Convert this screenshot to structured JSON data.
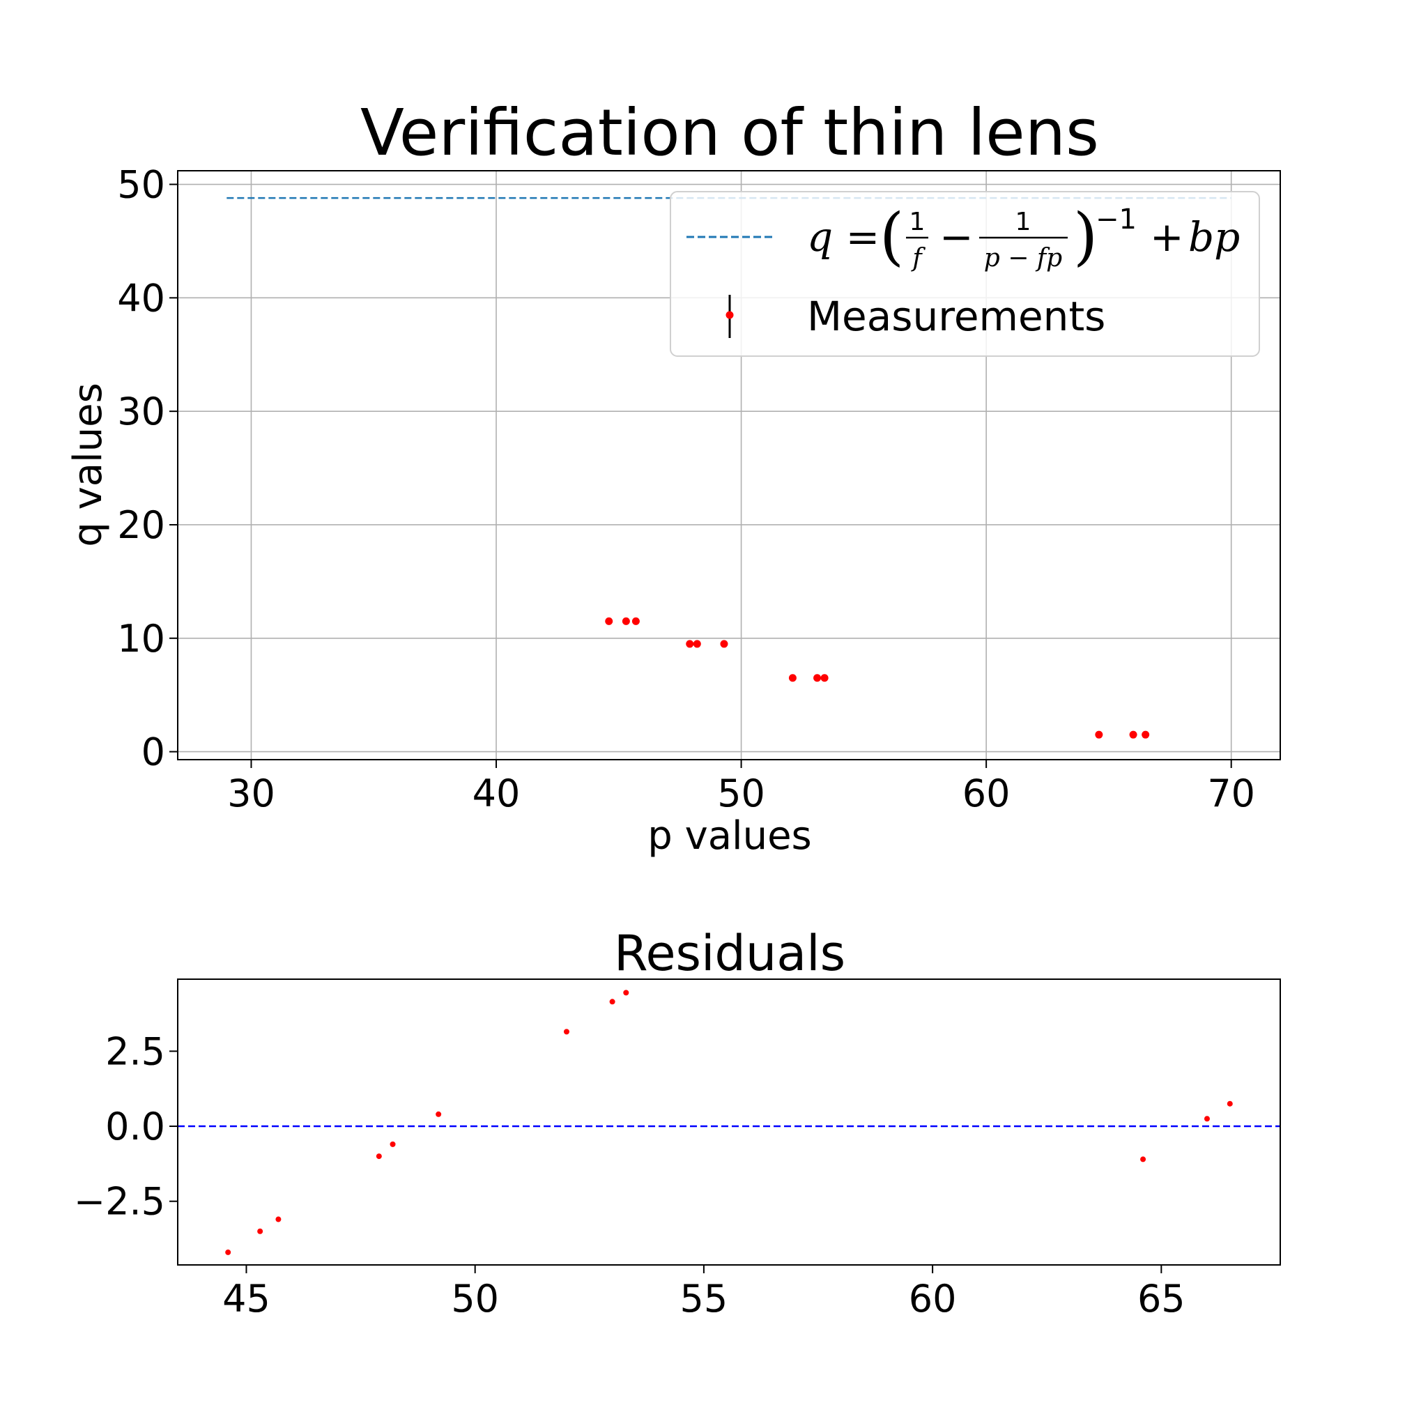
{
  "chart_data": [
    {
      "type": "scatter",
      "title": "Verification of thin lens",
      "xlabel": "p values",
      "ylabel": "q values",
      "xlim": [
        27,
        72
      ],
      "ylim": [
        -0.7,
        51.2
      ],
      "xticks": [
        "30",
        "40",
        "50",
        "60",
        "70"
      ],
      "yticks": [
        "0",
        "10",
        "20",
        "30",
        "40",
        "50"
      ],
      "grid": true,
      "legend_position": "top-right",
      "series": [
        {
          "name": "q = (1/f − 1/(p − fp))^−1 + bp",
          "kind": "line",
          "style": "dashed",
          "color": "#1f77b4",
          "x": [
            29,
            70
          ],
          "y": [
            48.8,
            48.8
          ]
        },
        {
          "name": "Measurements",
          "kind": "errorbar-points",
          "color": "#ff0000",
          "x": [
            44.6,
            45.3,
            45.7,
            47.9,
            48.2,
            49.3,
            52.1,
            53.1,
            53.4,
            64.6,
            66.0,
            66.5
          ],
          "y": [
            11.5,
            11.5,
            11.5,
            9.5,
            9.5,
            9.5,
            6.5,
            6.5,
            6.5,
            1.5,
            1.5,
            1.5
          ]
        }
      ],
      "legend_entries": [
        {
          "label": "Measurements"
        }
      ]
    },
    {
      "type": "scatter",
      "title": "Residuals",
      "xlim": [
        43.5,
        67.6
      ],
      "ylim": [
        -4.62,
        4.9
      ],
      "xticks": [
        "45",
        "50",
        "55",
        "60",
        "65"
      ],
      "yticks": [
        "2.5",
        "0.0",
        "−2.5"
      ],
      "grid": false,
      "zero_line": {
        "y": 0,
        "style": "dashed",
        "color": "#0000ff"
      },
      "series": [
        {
          "kind": "points",
          "color": "#ff0000",
          "x": [
            44.6,
            45.3,
            45.7,
            47.9,
            48.2,
            49.2,
            52.0,
            53.0,
            53.3,
            64.6,
            66.0,
            66.5
          ],
          "y": [
            -4.2,
            -3.5,
            -3.1,
            -1.0,
            -0.6,
            0.4,
            3.15,
            4.15,
            4.45,
            -1.1,
            0.25,
            0.75
          ]
        }
      ]
    }
  ]
}
